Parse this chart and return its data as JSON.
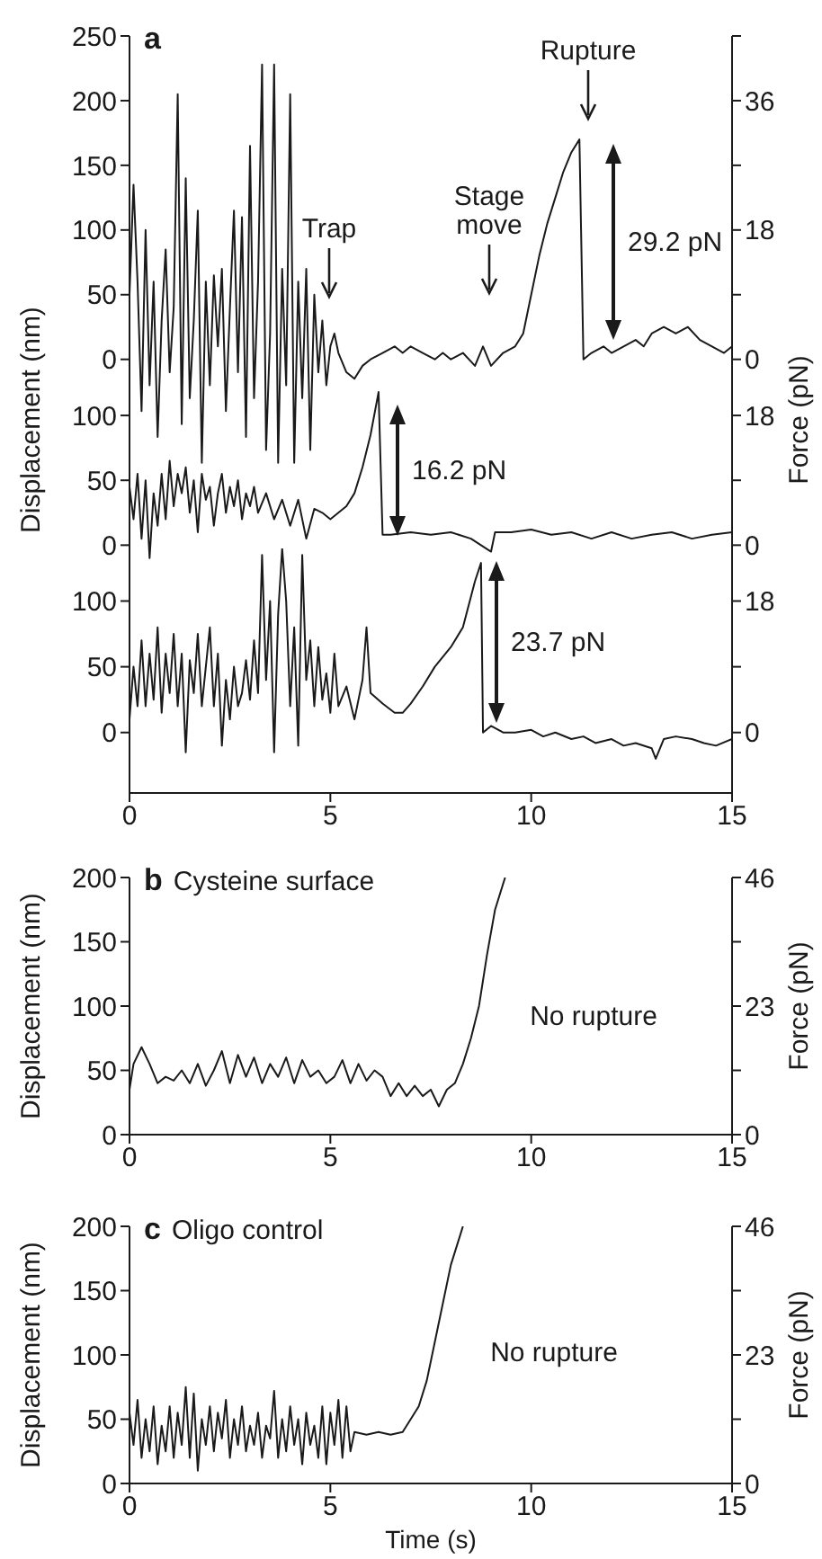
{
  "chart_data": [
    {
      "type": "line",
      "title": "a",
      "color": "#1a1a1a",
      "xlim": [
        0,
        15
      ],
      "ylim": [
        -85,
        250
      ],
      "yticks": [
        0,
        50,
        100,
        150,
        200,
        250
      ],
      "y2lim": [
        -15.3,
        45
      ],
      "y2ticks": [
        0,
        {
          "value": 9,
          "label": null
        },
        18,
        {
          "value": 27,
          "label": null
        },
        36,
        {
          "value": 45,
          "label": null
        }
      ],
      "tick_labels": "y",
      "x": [
        0,
        0.1,
        0.2,
        0.3,
        0.4,
        0.5,
        0.6,
        0.7,
        0.8,
        0.9,
        1.0,
        1.1,
        1.2,
        1.3,
        1.4,
        1.5,
        1.6,
        1.7,
        1.8,
        1.9,
        2.0,
        2.1,
        2.2,
        2.3,
        2.4,
        2.5,
        2.6,
        2.7,
        2.8,
        2.9,
        3.0,
        3.1,
        3.2,
        3.3,
        3.4,
        3.5,
        3.6,
        3.7,
        3.8,
        3.9,
        4.0,
        4.1,
        4.2,
        4.3,
        4.4,
        4.5,
        4.6,
        4.7,
        4.8,
        4.9,
        5.0,
        5.1,
        5.2,
        5.4,
        5.6,
        5.8,
        6.0,
        6.3,
        6.6,
        6.8,
        7.0,
        7.3,
        7.6,
        7.8,
        8.0,
        8.3,
        8.6,
        8.8,
        9.0,
        9.3,
        9.6,
        9.8,
        10.0,
        10.2,
        10.4,
        10.6,
        10.8,
        11.0,
        11.2,
        11.3,
        11.5,
        11.8,
        12.0,
        12.3,
        12.6,
        12.8,
        13.0,
        13.3,
        13.6,
        13.9,
        14.2,
        14.5,
        14.8,
        15.0
      ],
      "values": [
        50,
        135,
        60,
        -40,
        100,
        -20,
        60,
        -60,
        30,
        85,
        -10,
        40,
        205,
        -50,
        140,
        -30,
        30,
        115,
        -80,
        60,
        -20,
        65,
        10,
        70,
        -40,
        40,
        115,
        -10,
        110,
        -60,
        165,
        -30,
        60,
        228,
        -70,
        20,
        228,
        -80,
        70,
        -20,
        205,
        -80,
        60,
        -30,
        70,
        -70,
        50,
        -10,
        30,
        -20,
        10,
        20,
        5,
        -10,
        -15,
        -5,
        0,
        5,
        10,
        5,
        10,
        5,
        0,
        5,
        0,
        5,
        -5,
        10,
        -5,
        5,
        10,
        20,
        50,
        80,
        105,
        125,
        145,
        160,
        170,
        0,
        5,
        10,
        5,
        10,
        15,
        10,
        20,
        25,
        20,
        25,
        15,
        10,
        5,
        10
      ],
      "annotations": [
        "Trap",
        "Stage move",
        "Rupture",
        "29.2 pN"
      ]
    },
    {
      "type": "line",
      "color": "#1a1a1a",
      "xlim": [
        0,
        15
      ],
      "ylim": [
        -15,
        125
      ],
      "yticks": [
        0,
        50,
        100
      ],
      "y2lim": [
        -2.7,
        22.5
      ],
      "y2ticks": [
        0,
        {
          "value": 9,
          "label": null
        },
        18
      ],
      "tick_labels": "y",
      "ylabel": "Displacement (nm)",
      "y2label": "Force (pN)",
      "x": [
        0,
        0.1,
        0.2,
        0.3,
        0.4,
        0.5,
        0.6,
        0.7,
        0.8,
        0.9,
        1.0,
        1.1,
        1.2,
        1.3,
        1.4,
        1.5,
        1.6,
        1.7,
        1.8,
        1.9,
        2.0,
        2.1,
        2.2,
        2.3,
        2.4,
        2.5,
        2.6,
        2.7,
        2.8,
        2.9,
        3.0,
        3.1,
        3.2,
        3.4,
        3.6,
        3.8,
        4.0,
        4.2,
        4.4,
        4.6,
        4.8,
        5.0,
        5.2,
        5.4,
        5.6,
        5.8,
        6.0,
        6.2,
        6.3,
        6.5,
        7.0,
        7.5,
        8.0,
        8.5,
        9.0,
        9.1,
        9.5,
        10.0,
        10.5,
        11.0,
        11.5,
        12.0,
        12.5,
        13.0,
        13.5,
        14.0,
        14.5,
        15.0
      ],
      "values": [
        45,
        20,
        55,
        5,
        50,
        -10,
        40,
        15,
        55,
        20,
        65,
        30,
        55,
        40,
        60,
        25,
        50,
        10,
        55,
        35,
        45,
        15,
        40,
        55,
        25,
        45,
        30,
        50,
        20,
        40,
        30,
        45,
        25,
        40,
        20,
        35,
        15,
        35,
        5,
        28,
        25,
        20,
        25,
        30,
        40,
        60,
        85,
        118,
        8,
        8,
        10,
        8,
        10,
        5,
        -5,
        10,
        10,
        12,
        8,
        10,
        5,
        10,
        5,
        8,
        10,
        5,
        8,
        10
      ],
      "annotations": [
        "16.2 pN"
      ]
    },
    {
      "type": "line",
      "color": "#1a1a1a",
      "xlim": [
        0,
        15
      ],
      "xticks": [
        0,
        5,
        10,
        15
      ],
      "ylim": [
        -46,
        140
      ],
      "yticks": [
        0,
        50,
        100
      ],
      "y2lim": [
        -8.28,
        25.2
      ],
      "y2ticks": [
        0,
        {
          "value": 9,
          "label": null
        },
        18
      ],
      "x": [
        0,
        0.1,
        0.2,
        0.3,
        0.4,
        0.5,
        0.6,
        0.7,
        0.8,
        0.9,
        1.0,
        1.1,
        1.2,
        1.3,
        1.4,
        1.5,
        1.6,
        1.7,
        1.8,
        1.9,
        2.0,
        2.1,
        2.2,
        2.3,
        2.4,
        2.5,
        2.6,
        2.7,
        2.8,
        2.9,
        3.0,
        3.1,
        3.2,
        3.3,
        3.4,
        3.5,
        3.6,
        3.7,
        3.8,
        3.9,
        4.0,
        4.1,
        4.2,
        4.3,
        4.4,
        4.5,
        4.6,
        4.7,
        4.8,
        4.9,
        5.0,
        5.1,
        5.2,
        5.4,
        5.6,
        5.8,
        5.9,
        6.0,
        6.3,
        6.6,
        6.8,
        7.0,
        7.3,
        7.6,
        8.0,
        8.3,
        8.6,
        8.75,
        8.8,
        9.0,
        9.3,
        9.6,
        10.0,
        10.3,
        10.6,
        11.0,
        11.3,
        11.6,
        12.0,
        12.3,
        12.6,
        13.0,
        13.1,
        13.3,
        13.6,
        14.0,
        14.3,
        14.6,
        15.0
      ],
      "values": [
        10,
        50,
        20,
        70,
        20,
        60,
        25,
        80,
        15,
        60,
        30,
        75,
        20,
        60,
        -15,
        55,
        30,
        75,
        20,
        50,
        80,
        20,
        60,
        -10,
        40,
        10,
        50,
        20,
        30,
        55,
        25,
        70,
        30,
        135,
        40,
        100,
        -15,
        90,
        140,
        100,
        20,
        80,
        -10,
        135,
        40,
        70,
        20,
        65,
        25,
        45,
        15,
        60,
        20,
        35,
        10,
        40,
        80,
        30,
        22,
        15,
        15,
        22,
        35,
        50,
        65,
        80,
        115,
        129,
        0,
        5,
        0,
        0,
        2,
        -3,
        0,
        -5,
        -3,
        -8,
        -5,
        -10,
        -8,
        -12,
        -20,
        -5,
        -3,
        -5,
        -8,
        -10,
        -5
      ],
      "annotations": [
        "23.7 pN"
      ]
    },
    {
      "type": "line",
      "title": "b Cysteine surface",
      "color": "#1a1a1a",
      "xlim": [
        0,
        15
      ],
      "xticks": [
        0,
        5,
        10,
        15
      ],
      "ylim": [
        0,
        200
      ],
      "yticks": [
        0,
        50,
        100,
        150,
        200
      ],
      "y2lim": [
        0,
        46
      ],
      "y2ticks": [
        0,
        {
          "value": 11.5,
          "label": null
        },
        23,
        {
          "value": 34.5,
          "label": null
        },
        46
      ],
      "ylabel": "Displacement (nm)",
      "y2label": "Force (pN)",
      "x": [
        0,
        0.1,
        0.3,
        0.5,
        0.7,
        0.9,
        1.1,
        1.3,
        1.5,
        1.7,
        1.9,
        2.1,
        2.3,
        2.5,
        2.7,
        2.9,
        3.1,
        3.3,
        3.5,
        3.7,
        3.9,
        4.1,
        4.3,
        4.5,
        4.7,
        4.9,
        5.1,
        5.3,
        5.5,
        5.7,
        5.9,
        6.1,
        6.3,
        6.5,
        6.7,
        6.9,
        7.1,
        7.3,
        7.5,
        7.7,
        7.9,
        8.1,
        8.3,
        8.5,
        8.7,
        8.9,
        9.1,
        9.35
      ],
      "values": [
        35,
        55,
        68,
        55,
        40,
        45,
        42,
        50,
        40,
        55,
        38,
        50,
        65,
        40,
        62,
        45,
        60,
        40,
        55,
        45,
        60,
        40,
        58,
        45,
        50,
        40,
        45,
        58,
        40,
        55,
        42,
        50,
        45,
        30,
        40,
        30,
        38,
        30,
        35,
        22,
        35,
        40,
        55,
        75,
        100,
        140,
        175,
        200
      ],
      "annotations": [
        "No rupture"
      ]
    },
    {
      "type": "line",
      "title": "c Oligo control",
      "color": "#1a1a1a",
      "xlim": [
        0,
        15
      ],
      "xticks": [
        0,
        5,
        10,
        15
      ],
      "ylim": [
        0,
        200
      ],
      "yticks": [
        0,
        50,
        100,
        150,
        200
      ],
      "y2lim": [
        0,
        46
      ],
      "y2ticks": [
        0,
        {
          "value": 11.5,
          "label": null
        },
        23,
        {
          "value": 34.5,
          "label": null
        },
        46
      ],
      "xlabel": "Time (s)",
      "ylabel": "Displacement (nm)",
      "y2label": "Force (pN)",
      "x": [
        0,
        0.1,
        0.2,
        0.3,
        0.4,
        0.5,
        0.6,
        0.7,
        0.8,
        0.9,
        1.0,
        1.1,
        1.2,
        1.3,
        1.4,
        1.5,
        1.6,
        1.7,
        1.8,
        1.9,
        2.0,
        2.1,
        2.2,
        2.3,
        2.4,
        2.5,
        2.6,
        2.7,
        2.8,
        2.9,
        3.0,
        3.1,
        3.2,
        3.3,
        3.4,
        3.5,
        3.6,
        3.7,
        3.8,
        3.9,
        4.0,
        4.1,
        4.2,
        4.3,
        4.4,
        4.5,
        4.6,
        4.7,
        4.8,
        4.9,
        5.0,
        5.1,
        5.2,
        5.3,
        5.4,
        5.5,
        5.6,
        5.9,
        6.2,
        6.5,
        6.8,
        7.0,
        7.2,
        7.4,
        7.6,
        7.8,
        8.0,
        8.3
      ],
      "values": [
        55,
        30,
        65,
        20,
        50,
        25,
        60,
        15,
        45,
        25,
        60,
        20,
        55,
        30,
        75,
        20,
        70,
        10,
        50,
        30,
        60,
        25,
        55,
        35,
        65,
        20,
        50,
        30,
        60,
        25,
        45,
        30,
        55,
        20,
        45,
        35,
        72,
        20,
        50,
        25,
        60,
        30,
        50,
        15,
        55,
        30,
        45,
        20,
        60,
        15,
        55,
        30,
        65,
        20,
        60,
        25,
        40,
        38,
        40,
        38,
        40,
        50,
        60,
        80,
        110,
        140,
        170,
        200
      ],
      "annotations": [
        "No rupture"
      ]
    }
  ]
}
